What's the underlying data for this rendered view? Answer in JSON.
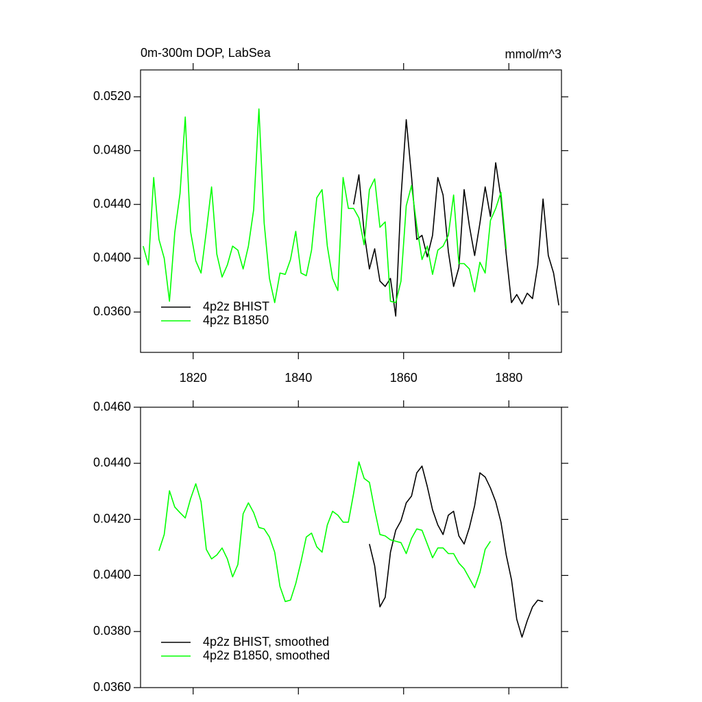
{
  "chart_data": [
    {
      "type": "line",
      "title": "0m-300m DOP, LabSea",
      "units": "mmol/m^3",
      "xlim": [
        1810,
        1890
      ],
      "xticks": [
        1820,
        1840,
        1860,
        1880
      ],
      "show_xtick_labels": true,
      "ylim": [
        0.033,
        0.054
      ],
      "yticks": [
        {
          "value": 0.036,
          "label": "0.0360"
        },
        {
          "value": 0.04,
          "label": "0.0400"
        },
        {
          "value": 0.044,
          "label": "0.0440"
        },
        {
          "value": 0.048,
          "label": "0.0480"
        },
        {
          "value": 0.052,
          "label": "0.0520"
        }
      ],
      "legend": "lower left",
      "series": [
        {
          "name": "4p2z BHIST",
          "color": "#000000",
          "x": [
            1850.5,
            1851.5,
            1852.5,
            1853.5,
            1854.5,
            1855.5,
            1856.5,
            1857.5,
            1858.5,
            1859.5,
            1860.5,
            1861.5,
            1862.5,
            1863.5,
            1864.5,
            1865.5,
            1866.5,
            1867.5,
            1868.5,
            1869.5,
            1870.5,
            1871.5,
            1872.5,
            1873.5,
            1874.5,
            1875.5,
            1876.5,
            1877.5,
            1878.5,
            1879.5,
            1880.5,
            1881.5,
            1882.5,
            1883.5,
            1884.5,
            1885.5,
            1886.5,
            1887.5,
            1888.5,
            1889.5
          ],
          "values": [
            0.044,
            0.0462,
            0.0419,
            0.0392,
            0.0407,
            0.0383,
            0.0379,
            0.0385,
            0.0357,
            0.0445,
            0.0503,
            0.0461,
            0.0414,
            0.0417,
            0.0401,
            0.0417,
            0.046,
            0.0447,
            0.0405,
            0.0379,
            0.0393,
            0.0451,
            0.0424,
            0.0402,
            0.0426,
            0.0453,
            0.0431,
            0.0471,
            0.0445,
            0.0403,
            0.0367,
            0.0373,
            0.0366,
            0.0374,
            0.037,
            0.0395,
            0.0444,
            0.0402,
            0.0389,
            0.0365
          ]
        },
        {
          "name": "4p2z B1850",
          "color": "#00ff00",
          "x": [
            1810.5,
            1811.5,
            1812.5,
            1813.5,
            1814.5,
            1815.5,
            1816.5,
            1817.5,
            1818.5,
            1819.5,
            1820.5,
            1821.5,
            1822.5,
            1823.5,
            1824.5,
            1825.5,
            1826.5,
            1827.5,
            1828.5,
            1829.5,
            1830.5,
            1831.5,
            1832.5,
            1833.5,
            1834.5,
            1835.5,
            1836.5,
            1837.5,
            1838.5,
            1839.5,
            1840.5,
            1841.5,
            1842.5,
            1843.5,
            1844.5,
            1845.5,
            1846.5,
            1847.5,
            1848.5,
            1849.5,
            1850.5,
            1851.5,
            1852.5,
            1853.5,
            1854.5,
            1855.5,
            1856.5,
            1857.5,
            1858.5,
            1859.5,
            1860.5,
            1861.5,
            1862.5,
            1863.5,
            1864.5,
            1865.5,
            1866.5,
            1867.5,
            1868.5,
            1869.5,
            1870.5,
            1871.5,
            1872.5,
            1873.5,
            1874.5,
            1875.5,
            1876.5,
            1877.5,
            1878.5,
            1879.5
          ],
          "values": [
            0.0409,
            0.0395,
            0.046,
            0.0414,
            0.04,
            0.0368,
            0.0419,
            0.0448,
            0.0505,
            0.042,
            0.0398,
            0.0389,
            0.042,
            0.0453,
            0.0403,
            0.0386,
            0.0395,
            0.0409,
            0.0406,
            0.0392,
            0.0409,
            0.0436,
            0.0511,
            0.0426,
            0.0385,
            0.0367,
            0.0389,
            0.0388,
            0.0399,
            0.042,
            0.0389,
            0.0387,
            0.0406,
            0.0445,
            0.0451,
            0.0409,
            0.0385,
            0.0376,
            0.046,
            0.0437,
            0.0437,
            0.043,
            0.041,
            0.0451,
            0.0459,
            0.0423,
            0.0427,
            0.0368,
            0.0367,
            0.0383,
            0.0439,
            0.0454,
            0.0424,
            0.0399,
            0.0409,
            0.0388,
            0.0406,
            0.0409,
            0.0417,
            0.0447,
            0.0396,
            0.0396,
            0.0392,
            0.0375,
            0.0397,
            0.0389,
            0.0428,
            0.0437,
            0.0449,
            0.0407
          ]
        }
      ]
    },
    {
      "type": "line",
      "xlim": [
        1810,
        1890
      ],
      "xticks": [
        1820,
        1840,
        1860,
        1880
      ],
      "show_xtick_labels": false,
      "ylim": [
        0.036,
        0.046
      ],
      "yticks": [
        {
          "value": 0.036,
          "label": "0.0360"
        },
        {
          "value": 0.038,
          "label": "0.0380"
        },
        {
          "value": 0.04,
          "label": "0.0400"
        },
        {
          "value": 0.042,
          "label": "0.0420"
        },
        {
          "value": 0.044,
          "label": "0.0440"
        },
        {
          "value": 0.046,
          "label": "0.0460"
        }
      ],
      "legend": "lower left",
      "series": [
        {
          "name": "4p2z BHIST, smoothed",
          "color": "#000000",
          "x": [
            1853.5,
            1854.5,
            1855.5,
            1856.5,
            1857.5,
            1858.5,
            1859.5,
            1860.5,
            1861.5,
            1862.5,
            1863.5,
            1864.5,
            1865.5,
            1866.5,
            1867.5,
            1868.5,
            1869.5,
            1870.5,
            1871.5,
            1872.5,
            1873.5,
            1874.5,
            1875.5,
            1876.5,
            1877.5,
            1878.5,
            1879.5,
            1880.5,
            1881.5,
            1882.5,
            1883.5,
            1884.5,
            1885.5,
            1886.5
          ],
          "values": [
            0.04112,
            0.04034,
            0.03888,
            0.03922,
            0.04083,
            0.04161,
            0.04195,
            0.04259,
            0.04283,
            0.04366,
            0.0439,
            0.04317,
            0.04234,
            0.0418,
            0.04146,
            0.04215,
            0.04229,
            0.04141,
            0.04112,
            0.04171,
            0.04249,
            0.04366,
            0.04351,
            0.04312,
            0.04263,
            0.0419,
            0.04073,
            0.03985,
            0.03844,
            0.0378,
            0.03839,
            0.03888,
            0.03912,
            0.03907
          ]
        },
        {
          "name": "4p2z B1850, smoothed",
          "color": "#00ff00",
          "x": [
            1813.5,
            1814.5,
            1815.5,
            1816.5,
            1817.5,
            1818.5,
            1819.5,
            1820.5,
            1821.5,
            1822.5,
            1823.5,
            1824.5,
            1825.5,
            1826.5,
            1827.5,
            1828.5,
            1829.5,
            1830.5,
            1831.5,
            1832.5,
            1833.5,
            1834.5,
            1835.5,
            1836.5,
            1837.5,
            1838.5,
            1839.5,
            1840.5,
            1841.5,
            1842.5,
            1843.5,
            1844.5,
            1845.5,
            1846.5,
            1847.5,
            1848.5,
            1849.5,
            1850.5,
            1851.5,
            1852.5,
            1853.5,
            1854.5,
            1855.5,
            1856.5,
            1857.5,
            1858.5,
            1859.5,
            1860.5,
            1861.5,
            1862.5,
            1863.5,
            1864.5,
            1865.5,
            1866.5,
            1867.5,
            1868.5,
            1869.5,
            1870.5,
            1871.5,
            1872.5,
            1873.5,
            1874.5,
            1875.5,
            1876.5
          ],
          "values": [
            0.04088,
            0.04146,
            0.04302,
            0.04244,
            0.04224,
            0.04205,
            0.04273,
            0.04327,
            0.04263,
            0.04093,
            0.04059,
            0.04073,
            0.04098,
            0.04059,
            0.03995,
            0.04039,
            0.0422,
            0.04259,
            0.04224,
            0.04171,
            0.04166,
            0.04137,
            0.04083,
            0.03961,
            0.03907,
            0.03912,
            0.03971,
            0.04049,
            0.04137,
            0.04151,
            0.04102,
            0.04083,
            0.0418,
            0.04229,
            0.04215,
            0.0419,
            0.0419,
            0.04293,
            0.04405,
            0.04346,
            0.04332,
            0.04234,
            0.04146,
            0.04141,
            0.04127,
            0.04122,
            0.04117,
            0.04078,
            0.04132,
            0.04166,
            0.04161,
            0.04112,
            0.04063,
            0.04098,
            0.04098,
            0.04078,
            0.04078,
            0.04044,
            0.04024,
            0.0399,
            0.03956,
            0.0401,
            0.04093,
            0.04122
          ]
        }
      ]
    }
  ]
}
